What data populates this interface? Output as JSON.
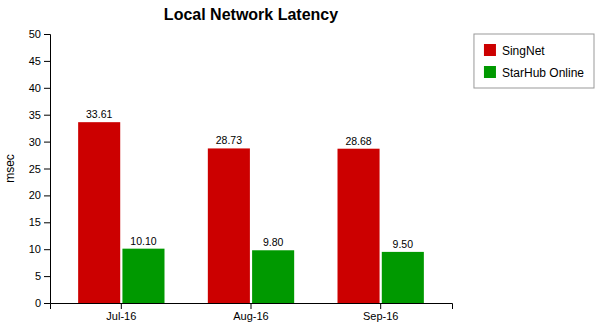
{
  "chart_data": {
    "type": "bar",
    "title": "Local Network Latency",
    "categories": [
      "Jul-16",
      "Aug-16",
      "Sep-16"
    ],
    "series": [
      {
        "name": "SingNet",
        "color": "#CC0000",
        "values": [
          33.61,
          28.73,
          28.68
        ],
        "value_labels": [
          "33.61",
          "28.73",
          "28.68"
        ]
      },
      {
        "name": "StarHub Online",
        "color": "#009900",
        "values": [
          10.1,
          9.8,
          9.5
        ],
        "value_labels": [
          "10.10",
          "9.80",
          "9.50"
        ]
      }
    ],
    "ylabel": "msec",
    "ylim": [
      0,
      50
    ],
    "yticks": [
      0,
      5,
      10,
      15,
      20,
      25,
      30,
      35,
      40,
      45,
      50
    ],
    "grid": false,
    "legend": "upper right",
    "data_labels": true
  }
}
